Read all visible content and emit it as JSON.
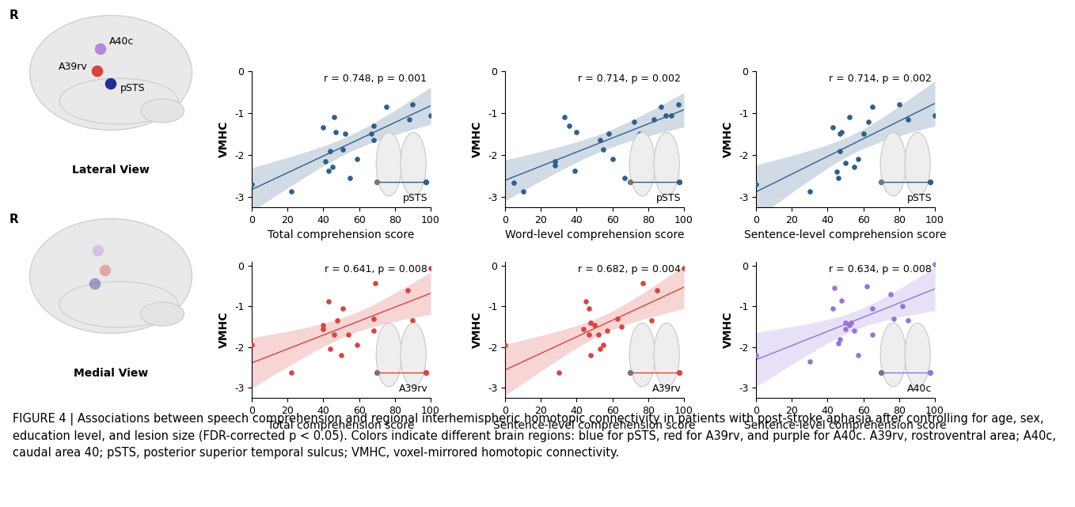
{
  "chart_data": [
    {
      "type": "scatter",
      "x_label": "Total comprehension score",
      "y_label": "VMHC",
      "annotations": [
        "r = 0.748, p = 0.001",
        "pSTS"
      ],
      "color": "#2f5f8a",
      "x": [
        0,
        22,
        40,
        41,
        43,
        44,
        45,
        46,
        47,
        51,
        52,
        55,
        59,
        67,
        68,
        68,
        75,
        88,
        90,
        100
      ],
      "values": [
        -2.7,
        -2.88,
        -1.35,
        -2.15,
        -2.38,
        -1.9,
        -2.28,
        -1.1,
        -1.45,
        -1.87,
        -1.5,
        -2.55,
        -2.1,
        -1.5,
        -1.65,
        -1.3,
        -0.85,
        -1.15,
        -0.8,
        -1.05
      ],
      "xlim": [
        0,
        100
      ],
      "ylim": [
        -3.25,
        0
      ],
      "xticks": [
        0,
        20,
        40,
        60,
        80,
        100
      ],
      "yticks": [
        -3,
        -2,
        -1,
        0
      ]
    },
    {
      "type": "scatter",
      "x_label": "Word-level comprehension score",
      "y_label": "VMHC",
      "annotations": [
        "r = 0.714, p = 0.002",
        "pSTS"
      ],
      "color": "#2f5f8a",
      "x": [
        5,
        10,
        28,
        28,
        33,
        36,
        39,
        40,
        53,
        55,
        58,
        60,
        67,
        72,
        75,
        83,
        87,
        90,
        93,
        97
      ],
      "values": [
        -2.67,
        -2.87,
        -2.15,
        -2.25,
        -1.1,
        -1.3,
        -2.38,
        -1.45,
        -1.65,
        -1.87,
        -1.5,
        -2.1,
        -2.55,
        -1.2,
        -1.5,
        -1.15,
        -0.85,
        -1.05,
        -1.05,
        -0.8
      ],
      "xlim": [
        0,
        100
      ],
      "ylim": [
        -3.25,
        0
      ],
      "xticks": [
        0,
        20,
        40,
        60,
        80,
        100
      ],
      "yticks": [
        -3,
        -2,
        -1,
        0
      ]
    },
    {
      "type": "scatter",
      "x_label": "Sentence-level comprehension score",
      "y_label": "VMHC",
      "annotations": [
        "r = 0.714, p = 0.002",
        "pSTS"
      ],
      "color": "#2f5f8a",
      "x": [
        0,
        30,
        43,
        45,
        46,
        47,
        47,
        48,
        50,
        52,
        55,
        57,
        60,
        63,
        65,
        75,
        80,
        85,
        100
      ],
      "values": [
        -2.7,
        -2.88,
        -1.35,
        -2.4,
        -2.55,
        -1.9,
        -1.5,
        -1.45,
        -2.2,
        -1.1,
        -2.28,
        -2.1,
        -1.5,
        -1.2,
        -0.85,
        -1.65,
        -0.8,
        -1.15,
        -1.05
      ],
      "xlim": [
        0,
        100
      ],
      "ylim": [
        -3.25,
        0
      ],
      "xticks": [
        0,
        20,
        40,
        60,
        80,
        100
      ],
      "yticks": [
        -3,
        -2,
        -1,
        0
      ]
    },
    {
      "type": "scatter",
      "x_label": "Total comprehension score",
      "y_label": "VMHC",
      "annotations": [
        "r = 0.641, p = 0.008",
        "A39rv"
      ],
      "color": "#d9443f",
      "x": [
        0,
        22,
        40,
        40,
        43,
        44,
        46,
        48,
        50,
        51,
        54,
        59,
        68,
        69,
        68,
        75,
        87,
        90,
        100
      ],
      "values": [
        -1.95,
        -2.62,
        -1.45,
        -1.55,
        -0.88,
        -2.05,
        -1.7,
        -1.35,
        -2.2,
        -1.05,
        -1.7,
        -1.95,
        -1.3,
        -0.42,
        -1.6,
        -1.55,
        -0.6,
        -1.35,
        -0.05
      ],
      "xlim": [
        0,
        100
      ],
      "ylim": [
        -3.25,
        0.1
      ],
      "xticks": [
        0,
        20,
        40,
        60,
        80,
        100
      ],
      "yticks": [
        -3,
        -2,
        -1,
        0
      ]
    },
    {
      "type": "scatter",
      "x_label": "Sentence-level comprehension score",
      "y_label": "VMHC",
      "annotations": [
        "r = 0.682, p = 0.004",
        "A39rv"
      ],
      "color": "#d9443f",
      "x": [
        0,
        30,
        44,
        45,
        47,
        47,
        48,
        48,
        50,
        52,
        53,
        55,
        57,
        63,
        65,
        77,
        82,
        85,
        100
      ],
      "values": [
        -1.95,
        -2.62,
        -1.55,
        -0.88,
        -1.05,
        -1.7,
        -1.4,
        -2.2,
        -1.45,
        -1.7,
        -2.05,
        -1.95,
        -1.6,
        -1.3,
        -1.5,
        -0.42,
        -1.35,
        -0.6,
        -0.05
      ],
      "xlim": [
        0,
        100
      ],
      "ylim": [
        -3.25,
        0.1
      ],
      "xticks": [
        0,
        20,
        40,
        60,
        80,
        100
      ],
      "yticks": [
        -3,
        -2,
        -1,
        0
      ]
    },
    {
      "type": "scatter",
      "x_label": "Sentence-level comprehension score",
      "y_label": "VMHC",
      "annotations": [
        "r = 0.634, p = 0.008",
        "A40c"
      ],
      "color": "#9674d8",
      "x": [
        0,
        30,
        43,
        44,
        46,
        47,
        48,
        50,
        50,
        52,
        53,
        55,
        57,
        62,
        65,
        65,
        75,
        77,
        82,
        85,
        100
      ],
      "values": [
        -2.2,
        -2.35,
        -1.05,
        -0.55,
        -1.9,
        -1.8,
        -0.85,
        -1.4,
        -1.55,
        -1.45,
        -1.4,
        -1.6,
        -2.2,
        -0.5,
        -1.05,
        -1.7,
        -0.7,
        -1.3,
        -1.0,
        -1.35,
        0.05
      ],
      "xlim": [
        0,
        100
      ],
      "ylim": [
        -3.25,
        0.1
      ],
      "xticks": [
        0,
        20,
        40,
        60,
        80,
        100
      ],
      "yticks": [
        -3,
        -2,
        -1,
        0
      ]
    }
  ],
  "panels": {
    "label": "R",
    "lateral": {
      "title": "Lateral View"
    },
    "medial": {
      "title": "Medial View"
    },
    "regions": [
      {
        "name": "A40c",
        "color": "#b48ad8"
      },
      {
        "name": "A39rv",
        "color": "#d9443f"
      },
      {
        "name": "pSTS",
        "color": "#1f2f8f"
      }
    ]
  },
  "caption": "FIGURE 4 | Associations between speech comprehension and regional interhemispheric homotopic connectivity in patients with post-stroke aphasia after controlling for age, sex, education level, and lesion size (FDR-corrected p < 0.05). Colors indicate different brain regions: blue for pSTS, red for A39rv, and purple for A40c. A39rv, rostroventral area; A40c, caudal area 40; pSTS, posterior superior temporal sulcus; VMHC, voxel-mirrored homotopic connectivity."
}
